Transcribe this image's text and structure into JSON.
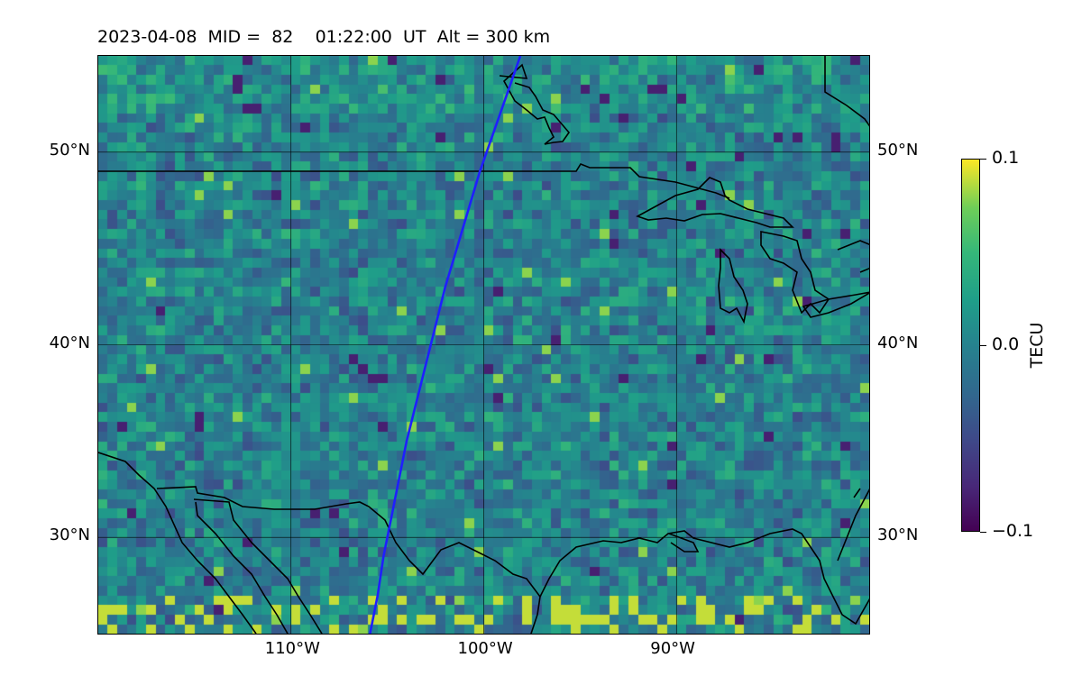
{
  "title": {
    "date": "2023-04-08",
    "mid_label": "MID =",
    "mid_value": "82",
    "time": "01:22:00",
    "time_unit": "UT",
    "alt_label": "Alt =",
    "alt_value": "300 km"
  },
  "map": {
    "extent": {
      "lon": [
        -120,
        -80
      ],
      "lat": [
        25,
        55
      ]
    },
    "lat_ticks": [
      {
        "value": 50,
        "label": "50°N"
      },
      {
        "value": 40,
        "label": "40°N"
      },
      {
        "value": 30,
        "label": "30°N"
      }
    ],
    "lon_ticks": [
      {
        "value": -110,
        "label": "110°W"
      },
      {
        "value": -100,
        "label": "100°W"
      },
      {
        "value": -90,
        "label": "90°W"
      }
    ],
    "gridlines": true,
    "track_color": "#1f1fff",
    "coast_color": "#000000",
    "satellite_track": [
      [
        -105.9,
        25.0
      ],
      [
        -105.5,
        27.0
      ],
      [
        -105.2,
        29.0
      ],
      [
        -104.8,
        31.0
      ],
      [
        -104.4,
        33.0
      ],
      [
        -104.0,
        35.0
      ],
      [
        -103.5,
        37.0
      ],
      [
        -103.0,
        39.0
      ],
      [
        -102.5,
        41.0
      ],
      [
        -102.0,
        43.0
      ],
      [
        -101.4,
        45.0
      ],
      [
        -100.8,
        47.0
      ],
      [
        -100.2,
        49.0
      ],
      [
        -99.5,
        51.0
      ],
      [
        -98.8,
        53.0
      ],
      [
        -98.1,
        55.0
      ]
    ]
  },
  "colorbar": {
    "label": "TECU",
    "ticks": [
      {
        "value": 0.1,
        "label": "0.1"
      },
      {
        "value": 0.0,
        "label": "0.0"
      },
      {
        "value": -0.1,
        "label": "−0.1"
      }
    ],
    "range": [
      -0.1,
      0.1
    ],
    "colormap": "viridis"
  }
}
